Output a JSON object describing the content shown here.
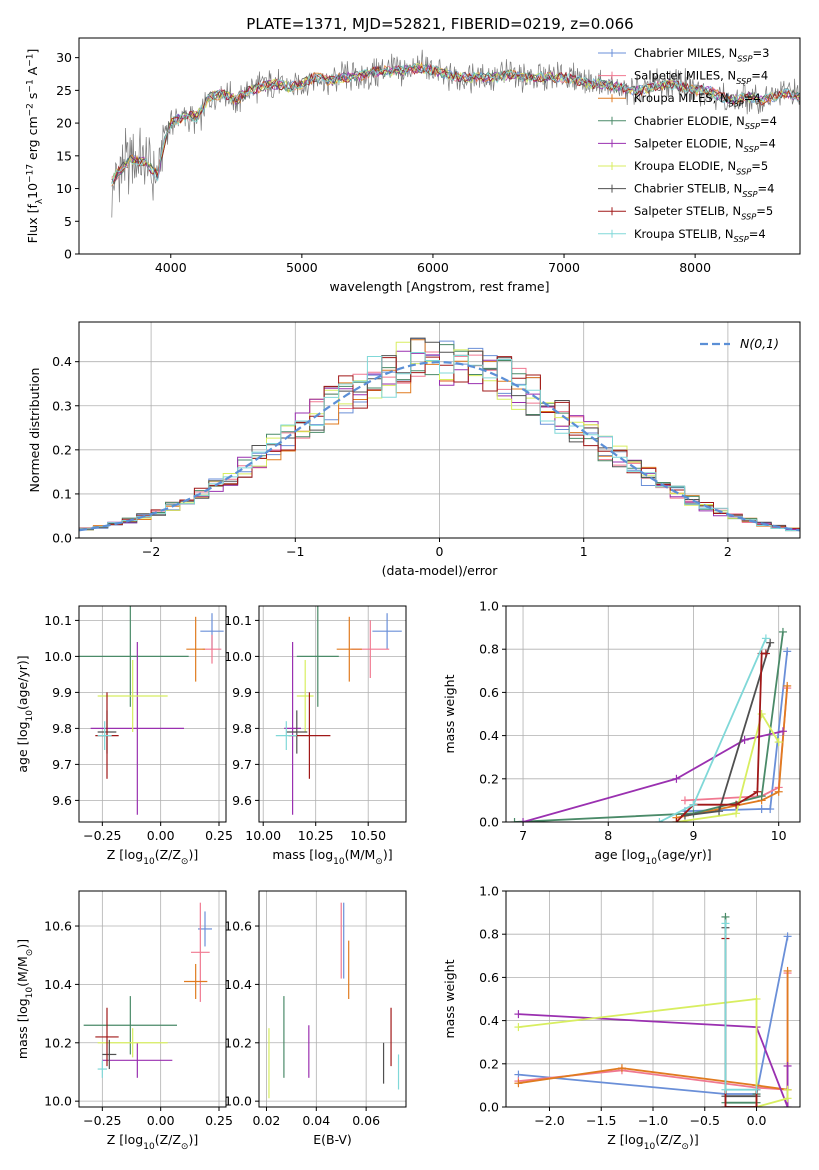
{
  "figure_title": "PLATE=1371, MJD=52821, FIBERID=0219, z=0.066",
  "series_names": [
    "Chabrier MILES, N$_{SSP}$=3",
    "Salpeter MILES, N$_{SSP}$=4",
    "Kroupa MILES, N$_{SSP}$=4",
    "Chabrier ELODIE, N$_{SSP}$=4",
    "Salpeter ELODIE, N$_{SSP}$=4",
    "Kroupa ELODIE, N$_{SSP}$=5",
    "Chabrier STELIB, N$_{SSP}$=4",
    "Salpeter STELIB, N$_{SSP}$=5",
    "Kroupa STELIB, N$_{SSP}$=4"
  ],
  "series_colors": [
    "#6a8fd8",
    "#f07890",
    "#e07b20",
    "#4a8a68",
    "#9a30b0",
    "#d8ee60",
    "#505050",
    "#a01818",
    "#80d8d8"
  ],
  "chart_data": [
    {
      "type": "line",
      "xlabel": "wavelength [Angstrom, rest frame]",
      "ylabel": "Flux [f$_\\lambda$10$^{-17}$ erg cm$^{-2}$ s$^{-1}$ A$^{-1}$]",
      "xlim": [
        3300,
        8800
      ],
      "ylim": [
        0,
        33
      ],
      "xticks": [
        4000,
        5000,
        6000,
        7000,
        8000
      ],
      "yticks": [
        0,
        5,
        10,
        15,
        20,
        25,
        30
      ],
      "legend": "top-right",
      "x": [
        3550,
        3600,
        3700,
        3800,
        3900,
        3950,
        4000,
        4100,
        4200,
        4300,
        4400,
        4500,
        4600,
        4700,
        4800,
        4900,
        5000,
        5100,
        5200,
        5300,
        5400,
        5500,
        5600,
        5700,
        5800,
        5900,
        6000,
        6100,
        6200,
        6300,
        6400,
        6500,
        6600,
        6700,
        6800,
        6900,
        7000,
        7100,
        7200,
        7300,
        7400,
        7500,
        7600,
        7700,
        7800,
        7900,
        8000,
        8100,
        8200,
        8300,
        8400,
        8500,
        8600,
        8700,
        8800
      ],
      "observed_flux": [
        10,
        12,
        15,
        14,
        11,
        18,
        20,
        21,
        20,
        24,
        25,
        23,
        25,
        26,
        26,
        25,
        26,
        27,
        26,
        27,
        27,
        27,
        28,
        28,
        28,
        29,
        28,
        27,
        27,
        27,
        27,
        27,
        28,
        27,
        27,
        27,
        27,
        27,
        26,
        26,
        25,
        25,
        25,
        26,
        26,
        26,
        25,
        25,
        24,
        23,
        24,
        23,
        24,
        25,
        24
      ],
      "model_flux": [
        11,
        12.5,
        14.5,
        14,
        12,
        17,
        20,
        21,
        21,
        24,
        24.5,
        23.5,
        25,
        25.5,
        26,
        25.5,
        26,
        27,
        26.5,
        27,
        27,
        27.5,
        28,
        28,
        28,
        28.5,
        28,
        27.5,
        27,
        27,
        27,
        27,
        27.5,
        27,
        27,
        27,
        27,
        26.5,
        26,
        26,
        25.5,
        25,
        25,
        25.5,
        26,
        25.5,
        25,
        25,
        24,
        23.5,
        24,
        23.5,
        24,
        24.5,
        24
      ]
    },
    {
      "type": "line",
      "xlabel": "(data-model)/error",
      "ylabel": "Normed distribution",
      "xlim": [
        -2.5,
        2.5
      ],
      "ylim": [
        0,
        0.49
      ],
      "xticks": [
        -2,
        -1,
        0,
        1,
        2
      ],
      "yticks": [
        0.0,
        0.1,
        0.2,
        0.3,
        0.4
      ],
      "legend_label": "$\\mathcal{N}(0,1)$",
      "legend": "top-right",
      "bin_width": 0.1,
      "bin_start": -2.5
    },
    {
      "type": "scatter",
      "xlabel": "Z [log$_{10}$(Z/Z$_\\odot$)]",
      "ylabel": "age  [log$_{10}$(age/yr)]",
      "xlim": [
        -0.35,
        0.28
      ],
      "ylim": [
        9.54,
        10.14
      ],
      "xticks": [
        -0.25,
        0.0,
        0.25
      ],
      "xticklabels": [
        "−0.25",
        "0.00",
        "0.25"
      ],
      "yticks": [
        9.6,
        9.7,
        9.8,
        9.9,
        10.0,
        10.1
      ],
      "points": [
        {
          "x": 0.22,
          "y": 10.07,
          "xerr": 0.05,
          "yerr": 0.05
        },
        {
          "x": 0.22,
          "y": 10.02,
          "xerr": 0.04,
          "yerr": 0.04
        },
        {
          "x": 0.15,
          "y": 10.02,
          "xerr": 0.04,
          "yerr": 0.09
        },
        {
          "x": -0.13,
          "y": 10.0,
          "xerr": 0.25,
          "yerr": 0.14
        },
        {
          "x": -0.1,
          "y": 9.8,
          "xerr": 0.2,
          "yerr": 0.24
        },
        {
          "x": -0.12,
          "y": 9.89,
          "xerr": 0.15,
          "yerr": 0.1
        },
        {
          "x": -0.23,
          "y": 9.79,
          "xerr": 0.04,
          "yerr": 0.06
        },
        {
          "x": -0.23,
          "y": 9.78,
          "xerr": 0.05,
          "yerr": 0.12
        },
        {
          "x": -0.24,
          "y": 9.78,
          "xerr": 0.03,
          "yerr": 0.04
        }
      ]
    },
    {
      "type": "scatter",
      "xlabel": "mass [log$_{10}$(M/M$_\\odot$)]",
      "ylabel": "",
      "xlim": [
        9.98,
        10.68
      ],
      "ylim": [
        9.54,
        10.14
      ],
      "xticks": [
        10.0,
        10.25,
        10.5
      ],
      "xticklabels": [
        "10.00",
        "10.25",
        "10.50"
      ],
      "yticks": [
        9.6,
        9.7,
        9.8,
        9.9,
        10.0,
        10.1
      ],
      "points": [
        {
          "x": 10.59,
          "y": 10.07,
          "xerr": 0.07,
          "yerr": 0.05
        },
        {
          "x": 10.51,
          "y": 10.02,
          "xerr": 0.09,
          "yerr": 0.08
        },
        {
          "x": 10.41,
          "y": 10.02,
          "xerr": 0.06,
          "yerr": 0.09
        },
        {
          "x": 10.26,
          "y": 10.0,
          "xerr": 0.1,
          "yerr": 0.14
        },
        {
          "x": 10.14,
          "y": 9.8,
          "xerr": 0.04,
          "yerr": 0.24
        },
        {
          "x": 10.2,
          "y": 9.89,
          "xerr": 0.04,
          "yerr": 0.1
        },
        {
          "x": 10.16,
          "y": 9.79,
          "xerr": 0.05,
          "yerr": 0.06
        },
        {
          "x": 10.22,
          "y": 9.78,
          "xerr": 0.1,
          "yerr": 0.12
        },
        {
          "x": 10.11,
          "y": 9.78,
          "xerr": 0.05,
          "yerr": 0.04
        }
      ]
    },
    {
      "type": "line",
      "xlabel": "age  [log$_{10}$(age/yr)]",
      "ylabel": "mass weight",
      "xlim": [
        6.8,
        10.25
      ],
      "ylim": [
        0,
        1.0
      ],
      "xticks": [
        7,
        8,
        9,
        10
      ],
      "yticks": [
        0.0,
        0.2,
        0.4,
        0.6,
        0.8,
        1.0
      ],
      "series": [
        {
          "x": [
            8.9,
            9.8,
            9.9,
            10.1
          ],
          "y": [
            0.05,
            0.06,
            0.06,
            0.79
          ]
        },
        {
          "x": [
            8.9,
            9.8,
            10.0,
            10.1
          ],
          "y": [
            0.1,
            0.12,
            0.16,
            0.62
          ]
        },
        {
          "x": [
            8.8,
            9.8,
            10.0,
            10.1
          ],
          "y": [
            0.02,
            0.1,
            0.14,
            0.63
          ]
        },
        {
          "x": [
            6.9,
            9.0,
            9.8,
            10.05
          ],
          "y": [
            0.0,
            0.04,
            0.12,
            0.88
          ]
        },
        {
          "x": [
            7.0,
            8.8,
            9.6,
            10.05
          ],
          "y": [
            0.0,
            0.2,
            0.38,
            0.42
          ]
        },
        {
          "x": [
            8.8,
            9.5,
            9.8,
            10.0
          ],
          "y": [
            0.0,
            0.04,
            0.5,
            0.37
          ]
        },
        {
          "x": [
            8.9,
            9.3,
            9.9
          ],
          "y": [
            0.03,
            0.05,
            0.83
          ]
        },
        {
          "x": [
            8.8,
            9.0,
            9.5,
            9.75,
            9.8,
            9.85
          ],
          "y": [
            0.0,
            0.08,
            0.08,
            0.14,
            0.78,
            0.78
          ]
        },
        {
          "x": [
            8.6,
            9.0,
            9.85
          ],
          "y": [
            0.0,
            0.08,
            0.85
          ]
        }
      ]
    },
    {
      "type": "scatter",
      "xlabel": "Z [log$_{10}$(Z/Z$_\\odot$)]",
      "ylabel": "mass [log$_{10}$(M/M$_\\odot$)]",
      "xlim": [
        -0.35,
        0.28
      ],
      "ylim": [
        9.98,
        10.72
      ],
      "xticks": [
        -0.25,
        0.0,
        0.25
      ],
      "xticklabels": [
        "−0.25",
        "0.00",
        "0.25"
      ],
      "yticks": [
        10.0,
        10.2,
        10.4,
        10.6
      ],
      "points": [
        {
          "x": 0.19,
          "y": 10.59,
          "xerr": 0.03,
          "yerr": 0.06
        },
        {
          "x": 0.17,
          "y": 10.51,
          "xerr": 0.04,
          "yerr": 0.17
        },
        {
          "x": 0.15,
          "y": 10.41,
          "xerr": 0.05,
          "yerr": 0.06
        },
        {
          "x": -0.13,
          "y": 10.26,
          "xerr": 0.2,
          "yerr": 0.1
        },
        {
          "x": -0.1,
          "y": 10.14,
          "xerr": 0.15,
          "yerr": 0.06
        },
        {
          "x": -0.12,
          "y": 10.2,
          "xerr": 0.15,
          "yerr": 0.05
        },
        {
          "x": -0.22,
          "y": 10.16,
          "xerr": 0.03,
          "yerr": 0.05
        },
        {
          "x": -0.23,
          "y": 10.22,
          "xerr": 0.05,
          "yerr": 0.1
        },
        {
          "x": -0.25,
          "y": 10.11,
          "xerr": 0.02,
          "yerr": 0.03
        }
      ]
    },
    {
      "type": "scatter",
      "xlabel": "E(B-V)",
      "ylabel": "",
      "xlim": [
        0.017,
        0.076
      ],
      "ylim": [
        9.98,
        10.72
      ],
      "xticks": [
        0.02,
        0.04,
        0.06
      ],
      "yticks": [
        10.0,
        10.2,
        10.4,
        10.6
      ],
      "points": [
        {
          "x": 0.051,
          "y": 10.55,
          "xerr": 0.0,
          "yerr": 0.13
        },
        {
          "x": 0.05,
          "y": 10.55,
          "xerr": 0.0,
          "yerr": 0.13
        },
        {
          "x": 0.053,
          "y": 10.45,
          "xerr": 0.0,
          "yerr": 0.1
        },
        {
          "x": 0.027,
          "y": 10.22,
          "xerr": 0.0,
          "yerr": 0.14
        },
        {
          "x": 0.037,
          "y": 10.17,
          "xerr": 0.0,
          "yerr": 0.09
        },
        {
          "x": 0.021,
          "y": 10.13,
          "xerr": 0.0,
          "yerr": 0.12
        },
        {
          "x": 0.067,
          "y": 10.13,
          "xerr": 0.0,
          "yerr": 0.07
        },
        {
          "x": 0.07,
          "y": 10.22,
          "xerr": 0.0,
          "yerr": 0.1
        },
        {
          "x": 0.073,
          "y": 10.1,
          "xerr": 0.0,
          "yerr": 0.06
        }
      ]
    },
    {
      "type": "line",
      "xlabel": "Z [log$_{10}$(Z/Z$_\\odot$)]",
      "ylabel": "mass weight",
      "xlim": [
        -2.42,
        0.42
      ],
      "ylim": [
        0,
        1.0
      ],
      "xticks": [
        -2.0,
        -1.5,
        -1.0,
        -0.5,
        0.0
      ],
      "xticklabels": [
        "−2.0",
        "−1.5",
        "−1.0",
        "−0.5",
        "0.0"
      ],
      "yticks": [
        0.0,
        0.2,
        0.4,
        0.6,
        0.8,
        1.0
      ],
      "series": [
        {
          "x": [
            -2.3,
            -0.3,
            0.0,
            0.3
          ],
          "y": [
            0.15,
            0.06,
            0.06,
            0.79
          ]
        },
        {
          "x": [
            -2.3,
            -1.3,
            0.0,
            0.3,
            0.3
          ],
          "y": [
            0.12,
            0.17,
            0.09,
            0.08,
            0.62
          ]
        },
        {
          "x": [
            -2.3,
            -1.3,
            0.0,
            0.3,
            0.3
          ],
          "y": [
            0.11,
            0.18,
            0.1,
            0.08,
            0.63
          ]
        },
        {
          "x": [
            -0.3,
            -0.3,
            0.0,
            0.0
          ],
          "y": [
            0.88,
            0.02,
            0.02,
            0.06
          ]
        },
        {
          "x": [
            -2.3,
            0.0,
            0.3,
            0.3
          ],
          "y": [
            0.43,
            0.37,
            0.0,
            0.19
          ]
        },
        {
          "x": [
            -2.3,
            0.0,
            0.0,
            0.3,
            0.3
          ],
          "y": [
            0.37,
            0.5,
            0.0,
            0.04,
            0.08
          ]
        },
        {
          "x": [
            -0.3,
            -0.3,
            0.0
          ],
          "y": [
            0.83,
            0.05,
            0.05
          ]
        },
        {
          "x": [
            -0.3,
            -0.3,
            0.0,
            0.0
          ],
          "y": [
            0.78,
            0.0,
            0.0,
            0.08
          ]
        },
        {
          "x": [
            -0.3,
            -0.3,
            0.0
          ],
          "y": [
            0.85,
            0.08,
            0.08
          ]
        }
      ]
    }
  ]
}
